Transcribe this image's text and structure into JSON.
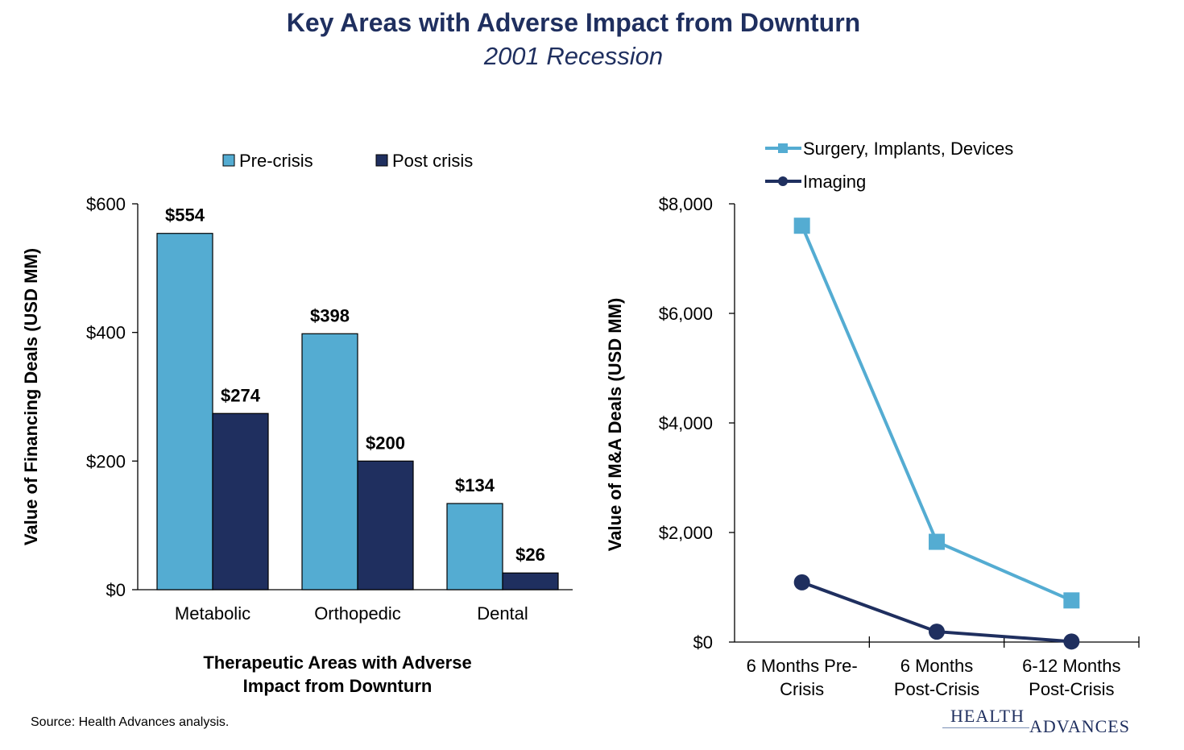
{
  "header": {
    "title": "Key Areas with Adverse Impact from Downturn",
    "subtitle": "2001 Recession"
  },
  "footer": {
    "source": "Source:  Health Advances analysis.",
    "logo_line1": "HEALTH",
    "logo_line2": "ADVANCES"
  },
  "colors": {
    "light": "#54ACD2",
    "dark": "#1F2F5F",
    "title": "#1F2F5F"
  },
  "chart_data": [
    {
      "type": "bar",
      "categories": [
        "Metabolic",
        "Orthopedic",
        "Dental"
      ],
      "series": [
        {
          "name": "Pre-crisis",
          "values": [
            554,
            398,
            134
          ],
          "labels": [
            "$554",
            "$398",
            "$134"
          ]
        },
        {
          "name": "Post crisis",
          "values": [
            274,
            200,
            26
          ],
          "labels": [
            "$274",
            "$200",
            "$26"
          ]
        }
      ],
      "ylim": [
        0,
        600
      ],
      "yticks": [
        0,
        200,
        400,
        600
      ],
      "ytick_labels": [
        "$0",
        "$200",
        "$400",
        "$600"
      ],
      "ylabel": "Value of Financing Deals (USD MM)",
      "xlabel_lines": [
        "Therapeutic Areas with Adverse",
        "Impact from Downturn"
      ],
      "legend": "top"
    },
    {
      "type": "line",
      "categories": [
        "6 Months Pre-Crisis",
        "6 Months Post-Crisis",
        "6-12 Months Post-Crisis"
      ],
      "category_lines": [
        [
          "6 Months Pre-",
          "Crisis"
        ],
        [
          "6 Months",
          "Post-Crisis"
        ],
        [
          "6-12 Months",
          "Post-Crisis"
        ]
      ],
      "series": [
        {
          "name": "Surgery, Implants, Devices",
          "values": [
            7600,
            1830,
            760
          ],
          "marker": "square"
        },
        {
          "name": "Imaging",
          "values": [
            1090,
            190,
            10
          ],
          "marker": "circle"
        }
      ],
      "ylim": [
        0,
        8000
      ],
      "yticks": [
        0,
        2000,
        4000,
        6000,
        8000
      ],
      "ytick_labels": [
        "$0",
        "$2,000",
        "$4,000",
        "$6,000",
        "$8,000"
      ],
      "ylabel": "Value of M&A Deals (USD MM)",
      "legend": "top-left"
    }
  ]
}
